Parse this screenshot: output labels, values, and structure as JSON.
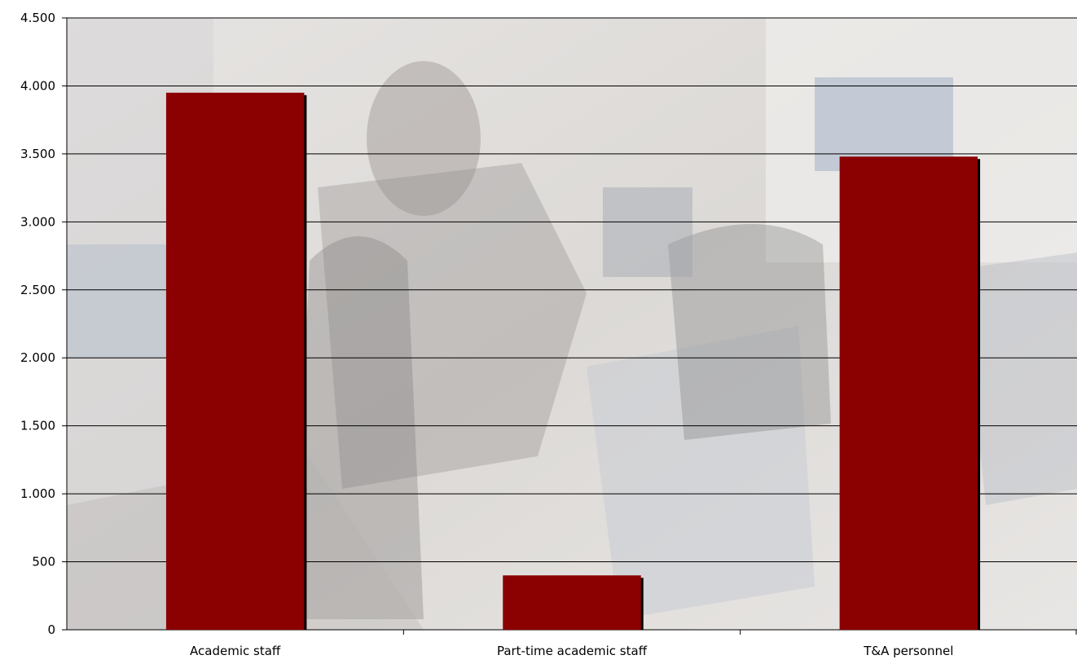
{
  "colors": {
    "bar": "#8b0000",
    "bar_shadow": "#000000",
    "gridline": "#000000",
    "plot_background": "#ebe9e8"
  },
  "chart_data": {
    "type": "bar",
    "title": "",
    "xlabel": "",
    "ylabel": "",
    "categories": [
      "Academic staff",
      "Part-time academic staff",
      "T&A personnel"
    ],
    "values": [
      3950,
      400,
      3480
    ],
    "ylim": [
      0,
      4500
    ],
    "yticks": [
      0,
      500,
      1000,
      1500,
      2000,
      2500,
      3000,
      3500,
      4000,
      4500
    ],
    "ytick_labels": [
      "0",
      "500",
      "1.000",
      "1.500",
      "2.000",
      "2.500",
      "3.000",
      "3.500",
      "4.000",
      "4.500"
    ],
    "grid": true,
    "legend": "none",
    "background": "faded classroom photograph behind plot area"
  }
}
